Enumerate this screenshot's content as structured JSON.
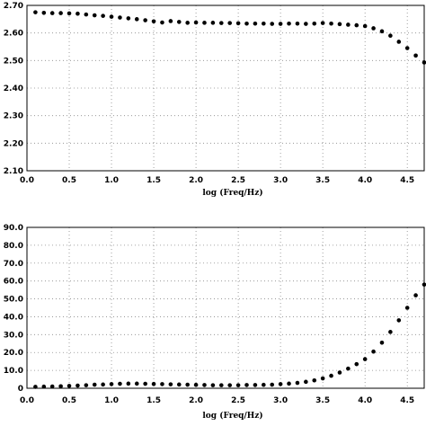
{
  "chart_data": [
    {
      "type": "scatter",
      "title": "",
      "xlabel": "log (Freq/Hz)",
      "ylabel": "",
      "xlim": [
        0,
        4.7
      ],
      "ylim": [
        2.1,
        2.7
      ],
      "x_ticks": [
        "0.0",
        "0.5",
        "1.0",
        "1.5",
        "2.0",
        "2.5",
        "3.0",
        "3.5",
        "4.0",
        "4.5"
      ],
      "y_ticks": [
        "2.10",
        "2.20",
        "2.30",
        "2.40",
        "2.50",
        "2.60",
        "2.70"
      ],
      "grid": true,
      "series": [
        {
          "x": [
            0.1,
            0.2,
            0.3,
            0.4,
            0.5,
            0.6,
            0.7,
            0.8,
            0.9,
            1.0,
            1.1,
            1.2,
            1.3,
            1.4,
            1.5,
            1.6,
            1.7,
            1.8,
            1.9,
            2.0,
            2.1,
            2.2,
            2.3,
            2.4,
            2.5,
            2.6,
            2.7,
            2.8,
            2.9,
            3.0,
            3.1,
            3.2,
            3.3,
            3.4,
            3.5,
            3.6,
            3.7,
            3.8,
            3.9,
            4.0,
            4.1,
            4.2,
            4.3,
            4.4,
            4.5,
            4.6,
            4.7
          ],
          "values": [
            2.675,
            2.673,
            2.672,
            2.672,
            2.671,
            2.67,
            2.667,
            2.664,
            2.662,
            2.659,
            2.656,
            2.653,
            2.65,
            2.646,
            2.642,
            2.638,
            2.643,
            2.64,
            2.637,
            2.638,
            2.637,
            2.637,
            2.636,
            2.636,
            2.635,
            2.634,
            2.634,
            2.634,
            2.633,
            2.633,
            2.634,
            2.634,
            2.633,
            2.634,
            2.636,
            2.634,
            2.632,
            2.63,
            2.628,
            2.625,
            2.617,
            2.606,
            2.59,
            2.568,
            2.545,
            2.518,
            2.493
          ]
        }
      ]
    },
    {
      "type": "scatter",
      "title": "",
      "xlabel": "log (Freq/Hz)",
      "ylabel": "",
      "xlim": [
        0,
        4.7
      ],
      "ylim": [
        0,
        90
      ],
      "x_ticks": [
        "0.0",
        "0.5",
        "1.0",
        "1.5",
        "2.0",
        "2.5",
        "3.0",
        "3.5",
        "4.0",
        "4.5"
      ],
      "y_ticks": [
        "0",
        "10.0",
        "20.0",
        "30.0",
        "40.0",
        "50.0",
        "60.0",
        "70.0",
        "80.0",
        "90.0"
      ],
      "grid": true,
      "series": [
        {
          "x": [
            0.1,
            0.2,
            0.3,
            0.4,
            0.5,
            0.6,
            0.7,
            0.8,
            0.9,
            1.0,
            1.1,
            1.2,
            1.3,
            1.4,
            1.5,
            1.6,
            1.7,
            1.8,
            1.9,
            2.0,
            2.1,
            2.2,
            2.3,
            2.4,
            2.5,
            2.6,
            2.7,
            2.8,
            2.9,
            3.0,
            3.1,
            3.2,
            3.3,
            3.4,
            3.5,
            3.6,
            3.7,
            3.8,
            3.9,
            4.0,
            4.1,
            4.2,
            4.3,
            4.4,
            4.5,
            4.6,
            4.7
          ],
          "values": [
            0.8,
            0.9,
            1.0,
            1.1,
            1.3,
            1.5,
            1.7,
            2.0,
            2.1,
            2.3,
            2.5,
            2.6,
            2.6,
            2.5,
            2.4,
            2.3,
            2.2,
            2.1,
            2.0,
            1.9,
            1.8,
            1.7,
            1.7,
            1.7,
            1.7,
            1.8,
            1.8,
            1.9,
            2.0,
            2.3,
            2.6,
            3.0,
            3.6,
            4.4,
            5.5,
            7.0,
            8.8,
            11.0,
            13.5,
            16.3,
            20.5,
            25.5,
            31.5,
            38.0,
            45.0,
            52.0,
            58.0
          ]
        }
      ]
    }
  ]
}
